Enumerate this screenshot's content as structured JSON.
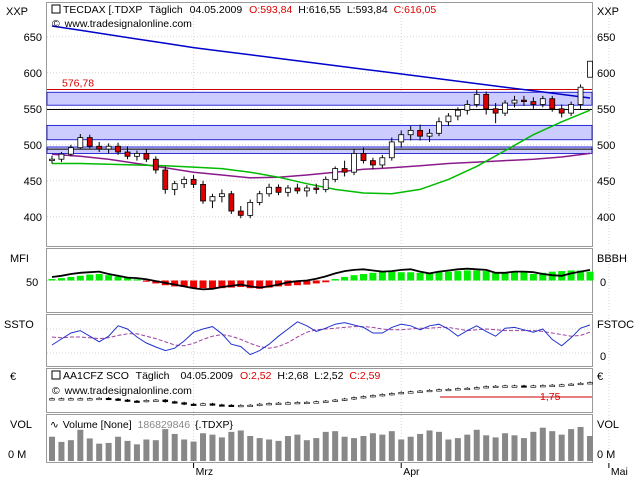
{
  "colors": {
    "frame": "#9a9a9a",
    "grid": "#d6d6d6",
    "up": "#ffffff",
    "down": "#dd0000",
    "candle_edge": "#000000",
    "ma_blue": "#0000cc",
    "ma_green": "#00bb00",
    "ma_purple": "#8a1a8a",
    "ref_red": "#cc0000",
    "band_fill": "#ccccff",
    "mfi_green": "#00ee00",
    "mfi_red": "#ee0000",
    "ssto_blue": "#2233cc",
    "ssto_purple": "#a040a0",
    "vol_bar": "#888888",
    "text": "#000000",
    "label_red": "#dd0000"
  },
  "x_axis": {
    "ticks": [
      {
        "label": "Mrz",
        "index": 15
      },
      {
        "label": "Apr",
        "index": 37
      },
      {
        "label": "Mai",
        "index": 59
      }
    ]
  },
  "main": {
    "axis_label_left": "XXP",
    "axis_label_right": "XXP",
    "instrument": "TECDAX [.TDXP",
    "period": "Täglich",
    "date": "04.05.2009",
    "open": "O:593,84",
    "high": "H:616,55",
    "low": "L:593,84",
    "close": "C:616,05",
    "watermark": "www.tradesignalonline.com",
    "ref_line_value": 576.78,
    "ref_line_label": "576,78",
    "band_ranges": [
      [
        555,
        573
      ],
      [
        507,
        527
      ],
      [
        488,
        497
      ]
    ],
    "hlines": [
      549,
      494
    ],
    "y_ticks": [
      {
        "label": "650",
        "value": 650
      },
      {
        "label": "600",
        "value": 600
      },
      {
        "label": "550",
        "value": 550
      },
      {
        "label": "500",
        "value": 500
      },
      {
        "label": "450",
        "value": 450
      },
      {
        "label": "400",
        "value": 400
      }
    ]
  },
  "mfi": {
    "label": "MFI",
    "label_right": "BBBH",
    "tick_50": "50",
    "tick_right": "0"
  },
  "ssto": {
    "label": "SSTO",
    "label_right": "FSTOC",
    "tick_right": "0"
  },
  "compare": {
    "axis_label_left": "€",
    "axis_label_right": "€",
    "instrument": "AA1CFZ SCO",
    "period": "Täglich",
    "date": "04.05.2009",
    "open": "O:2,52",
    "high": "H:2,68",
    "low": "L:2,52",
    "close": "C:2,59",
    "watermark": "www.tradesignalonline.com",
    "ref_line_label": "1,75"
  },
  "volume": {
    "label": "VOL",
    "label_right": "VOL",
    "tick_left": "0 M",
    "tick_right": "0 M",
    "legend_name": "Volume [None]",
    "legend_value": "186829846",
    "legend_symbol": "{.TDXP}"
  },
  "chart_data": [
    {
      "type": "candlestick",
      "title": "TECDAX [.TDXP Täglich 04.05.2009",
      "ylim": [
        365,
        690
      ],
      "grid": true,
      "candles": [
        [
          478,
          485,
          474,
          480
        ],
        [
          480,
          490,
          476,
          487
        ],
        [
          487,
          500,
          484,
          496
        ],
        [
          496,
          515,
          494,
          510
        ],
        [
          510,
          514,
          495,
          498
        ],
        [
          498,
          504,
          490,
          494
        ],
        [
          494,
          502,
          488,
          498
        ],
        [
          498,
          503,
          486,
          490
        ],
        [
          490,
          498,
          480,
          484
        ],
        [
          484,
          492,
          478,
          488
        ],
        [
          488,
          494,
          476,
          480
        ],
        [
          480,
          484,
          460,
          465
        ],
        [
          465,
          470,
          432,
          438
        ],
        [
          438,
          450,
          430,
          446
        ],
        [
          446,
          456,
          440,
          452
        ],
        [
          452,
          458,
          440,
          445
        ],
        [
          445,
          450,
          418,
          422
        ],
        [
          422,
          432,
          412,
          428
        ],
        [
          428,
          438,
          420,
          432
        ],
        [
          432,
          436,
          404,
          408
        ],
        [
          408,
          415,
          398,
          402
        ],
        [
          402,
          424,
          398,
          420
        ],
        [
          420,
          436,
          416,
          432
        ],
        [
          432,
          446,
          428,
          441
        ],
        [
          441,
          445,
          430,
          434
        ],
        [
          434,
          444,
          428,
          440
        ],
        [
          440,
          446,
          432,
          436
        ],
        [
          436,
          444,
          428,
          440
        ],
        [
          440,
          446,
          432,
          438
        ],
        [
          438,
          456,
          434,
          452
        ],
        [
          452,
          470,
          448,
          467
        ],
        [
          467,
          478,
          456,
          462
        ],
        [
          462,
          494,
          458,
          488
        ],
        [
          488,
          496,
          474,
          478
        ],
        [
          478,
          482,
          466,
          472
        ],
        [
          472,
          486,
          468,
          482
        ],
        [
          482,
          510,
          478,
          504
        ],
        [
          504,
          520,
          496,
          514
        ],
        [
          514,
          526,
          506,
          520
        ],
        [
          520,
          528,
          506,
          512
        ],
        [
          512,
          522,
          504,
          516
        ],
        [
          516,
          538,
          512,
          532
        ],
        [
          532,
          544,
          526,
          540
        ],
        [
          540,
          552,
          534,
          548
        ],
        [
          548,
          562,
          542,
          556
        ],
        [
          556,
          576,
          552,
          570
        ],
        [
          570,
          574,
          542,
          550
        ],
        [
          550,
          558,
          530,
          544
        ],
        [
          544,
          562,
          540,
          558
        ],
        [
          558,
          568,
          552,
          562
        ],
        [
          562,
          568,
          554,
          560
        ],
        [
          560,
          566,
          550,
          556
        ],
        [
          556,
          568,
          552,
          564
        ],
        [
          564,
          568,
          546,
          550
        ],
        [
          550,
          556,
          538,
          544
        ],
        [
          544,
          560,
          540,
          556
        ],
        [
          556,
          584,
          550,
          580
        ],
        [
          593.84,
          616.55,
          593.84,
          616.05
        ]
      ],
      "ma_blue": [
        665,
        659,
        653,
        647,
        641,
        635,
        630,
        625,
        620,
        615,
        610,
        605,
        600,
        595,
        590,
        585,
        580,
        575,
        570,
        565
      ],
      "ma_green": [
        474,
        474,
        473,
        472,
        471,
        469,
        467,
        462,
        455,
        446,
        438,
        433,
        432,
        438,
        452,
        470,
        492,
        514,
        532,
        548
      ],
      "ma_purple": [
        487,
        484,
        480,
        474,
        468,
        462,
        458,
        454,
        455,
        458,
        462,
        466,
        468,
        471,
        474,
        476,
        478,
        480,
        483,
        488
      ],
      "ma_x_end": 57
    },
    {
      "type": "bar",
      "title": "MFI",
      "ylim": [
        -100,
        100
      ],
      "values": [
        5,
        8,
        12,
        16,
        20,
        22,
        18,
        14,
        10,
        4,
        -4,
        -10,
        -16,
        -20,
        -22,
        -24,
        -26,
        -28,
        -26,
        -24,
        -22,
        -26,
        -28,
        -24,
        -20,
        -18,
        -16,
        -14,
        -10,
        -6,
        5,
        12,
        18,
        22,
        26,
        30,
        30,
        28,
        28,
        26,
        24,
        30,
        30,
        32,
        34,
        34,
        32,
        26,
        28,
        30,
        28,
        22,
        26,
        30,
        32,
        34,
        34,
        30
      ],
      "line": [
        12,
        16,
        22,
        26,
        28,
        30,
        22,
        16,
        10,
        8,
        4,
        -2,
        -8,
        -14,
        -20,
        -26,
        -30,
        -28,
        -22,
        -18,
        -14,
        -20,
        -24,
        -20,
        -14,
        -6,
        -2,
        0,
        6,
        14,
        24,
        32,
        36,
        38,
        34,
        30,
        32,
        36,
        38,
        30,
        24,
        30,
        34,
        38,
        40,
        38,
        36,
        26,
        26,
        30,
        30,
        28,
        22,
        18,
        16,
        24,
        30,
        36
      ]
    },
    {
      "type": "line",
      "title": "SSTO",
      "ylim": [
        -10,
        110
      ],
      "series": [
        {
          "values": [
            40,
            55,
            70,
            76,
            62,
            48,
            62,
            88,
            80,
            60,
            45,
            35,
            26,
            32,
            50,
            72,
            80,
            86,
            68,
            42,
            36,
            16,
            26,
            42,
            62,
            80,
            98,
            88,
            74,
            82,
            92,
            96,
            90,
            84,
            70,
            70,
            84,
            92,
            88,
            78,
            88,
            92,
            80,
            62,
            76,
            88,
            74,
            62,
            82,
            84,
            78,
            72,
            80,
            54,
            38,
            58,
            82,
            90
          ]
        },
        {
          "values": [
            60,
            58,
            60,
            60,
            58,
            56,
            58,
            64,
            68,
            68,
            62,
            56,
            48,
            40,
            38,
            44,
            54,
            62,
            66,
            62,
            54,
            44,
            36,
            32,
            36,
            46,
            60,
            72,
            78,
            80,
            82,
            84,
            86,
            86,
            84,
            80,
            78,
            78,
            80,
            82,
            82,
            84,
            84,
            80,
            76,
            78,
            80,
            78,
            76,
            76,
            76,
            76,
            74,
            70,
            66,
            62,
            64,
            72
          ]
        }
      ]
    },
    {
      "type": "candlestick",
      "title": "AA1CFZ SCO Täglich 04.05.2009",
      "ylim": [
        1.0,
        3.2
      ],
      "ref_line": 1.75,
      "closes": [
        1.66,
        1.66,
        1.66,
        1.66,
        1.66,
        1.68,
        1.64,
        1.58,
        1.52,
        1.5,
        1.56,
        1.58,
        1.48,
        1.42,
        1.34,
        1.32,
        1.36,
        1.3,
        1.28,
        1.26,
        1.27,
        1.28,
        1.34,
        1.38,
        1.4,
        1.42,
        1.44,
        1.45,
        1.48,
        1.52,
        1.58,
        1.64,
        1.72,
        1.78,
        1.84,
        1.9,
        1.96,
        2.02,
        2.06,
        2.1,
        2.14,
        2.18,
        2.2,
        2.24,
        2.26,
        2.3,
        2.36,
        2.38,
        2.4,
        2.4,
        2.38,
        2.4,
        2.42,
        2.44,
        2.46,
        2.5,
        2.55,
        2.59
      ]
    },
    {
      "type": "bar",
      "title": "Volume [None]",
      "values": [
        70,
        55,
        60,
        90,
        65,
        50,
        52,
        70,
        58,
        48,
        62,
        60,
        92,
        78,
        62,
        56,
        80,
        76,
        68,
        84,
        88,
        72,
        66,
        62,
        58,
        72,
        76,
        60,
        66,
        84,
        86,
        70,
        66,
        72,
        80,
        76,
        86,
        62,
        70,
        78,
        88,
        84,
        62,
        66,
        76,
        90,
        74,
        68,
        80,
        74,
        66,
        84,
        96,
        86,
        76,
        92,
        98,
        72
      ]
    }
  ]
}
